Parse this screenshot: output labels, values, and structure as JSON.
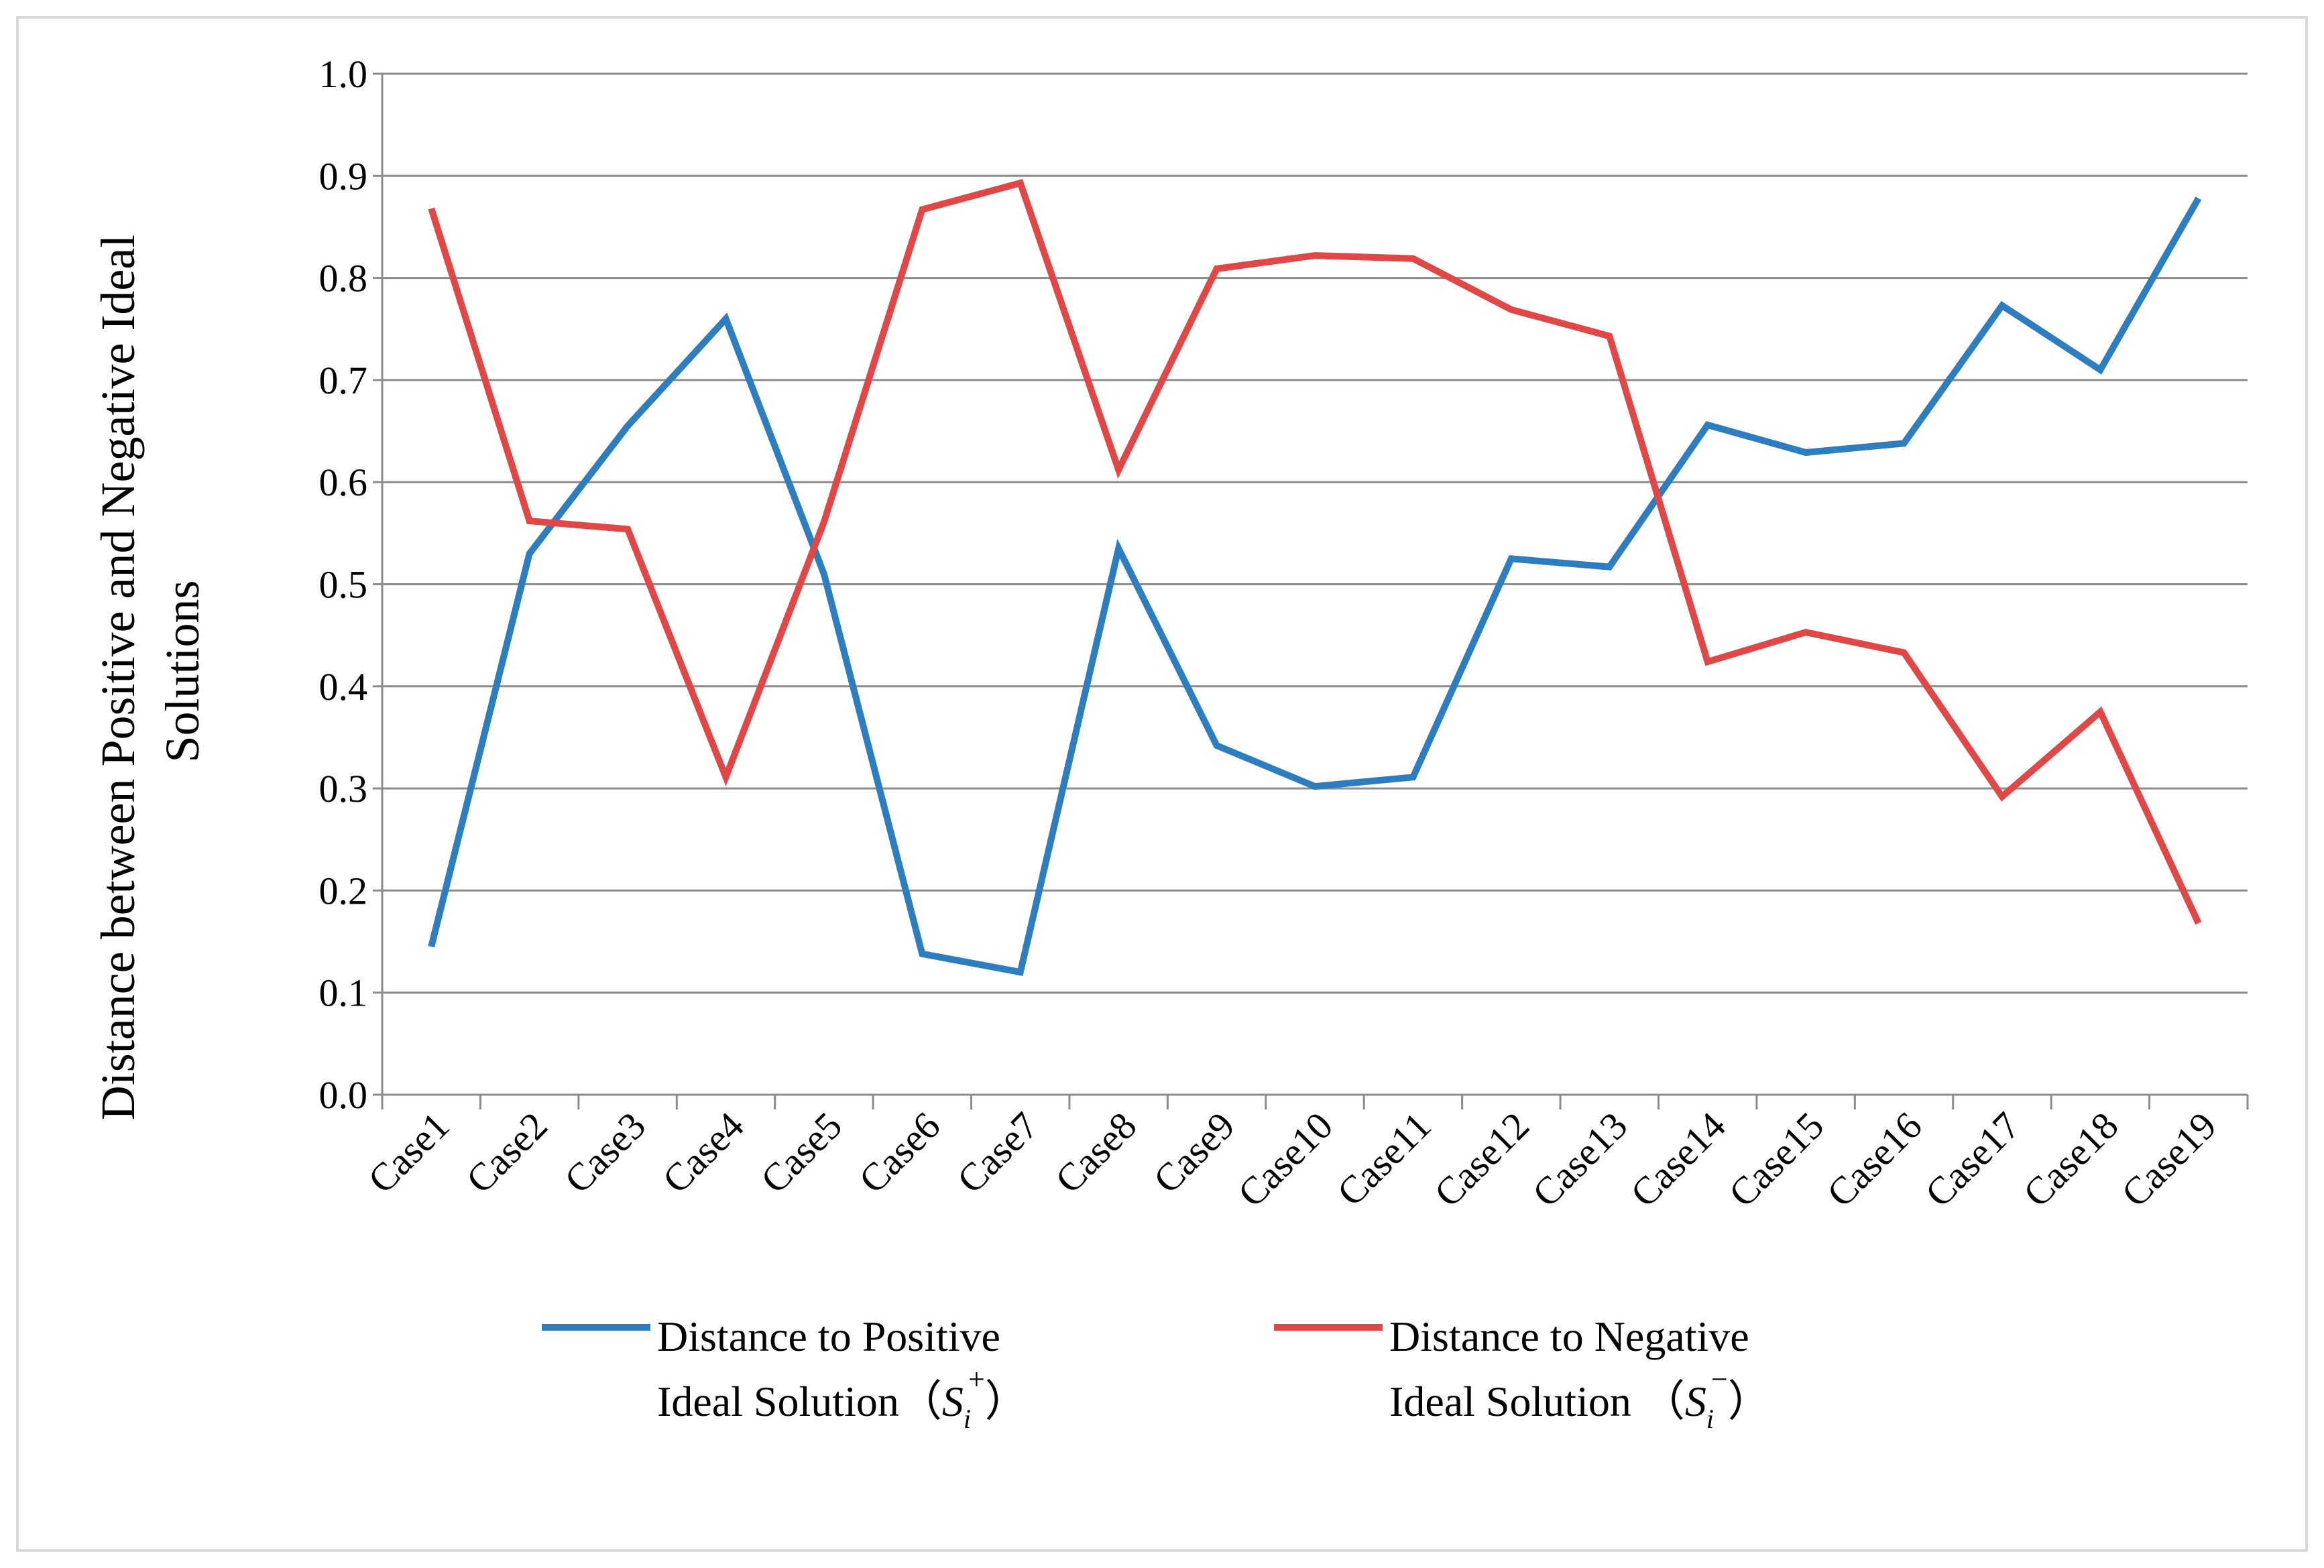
{
  "chart_data": {
    "type": "line",
    "title": "",
    "xlabel": "",
    "ylabel_lines": [
      "Distance between Positive and Negative Ideal",
      "Solutions"
    ],
    "ylim": [
      0.0,
      1.0
    ],
    "yticks": [
      "0.0",
      "0.1",
      "0.2",
      "0.3",
      "0.4",
      "0.5",
      "0.6",
      "0.7",
      "0.8",
      "0.9",
      "1.0"
    ],
    "grid": true,
    "legend_position": "bottom",
    "categories": [
      "Case1",
      "Case2",
      "Case3",
      "Case4",
      "Case5",
      "Case6",
      "Case7",
      "Case8",
      "Case9",
      "Case10",
      "Case11",
      "Case12",
      "Case13",
      "Case14",
      "Case15",
      "Case16",
      "Case17",
      "Case18",
      "Case19"
    ],
    "series": [
      {
        "name": "Distance to Positive Ideal Solution",
        "legend_line1": "Distance to Positive",
        "legend_line2": "Ideal Solution（",
        "legend_symbol": "S",
        "legend_sub": "i",
        "legend_sup": "+",
        "legend_close": "）",
        "color": "#2e7ebf",
        "values": [
          0.145,
          0.53,
          0.655,
          0.76,
          0.51,
          0.138,
          0.12,
          0.535,
          0.342,
          0.302,
          0.311,
          0.525,
          0.517,
          0.656,
          0.629,
          0.638,
          0.773,
          0.71,
          0.878
        ]
      },
      {
        "name": "Distance to Negative Ideal Solution",
        "legend_line1": "Distance to Negative",
        "legend_line2": "Ideal Solution （",
        "legend_symbol": "S",
        "legend_sub": "i",
        "legend_sup": "−",
        "legend_close": "）",
        "color": "#e04848",
        "values": [
          0.868,
          0.562,
          0.554,
          0.311,
          0.561,
          0.867,
          0.893,
          0.612,
          0.809,
          0.822,
          0.819,
          0.769,
          0.743,
          0.424,
          0.453,
          0.433,
          0.292,
          0.375,
          0.168
        ]
      }
    ]
  }
}
